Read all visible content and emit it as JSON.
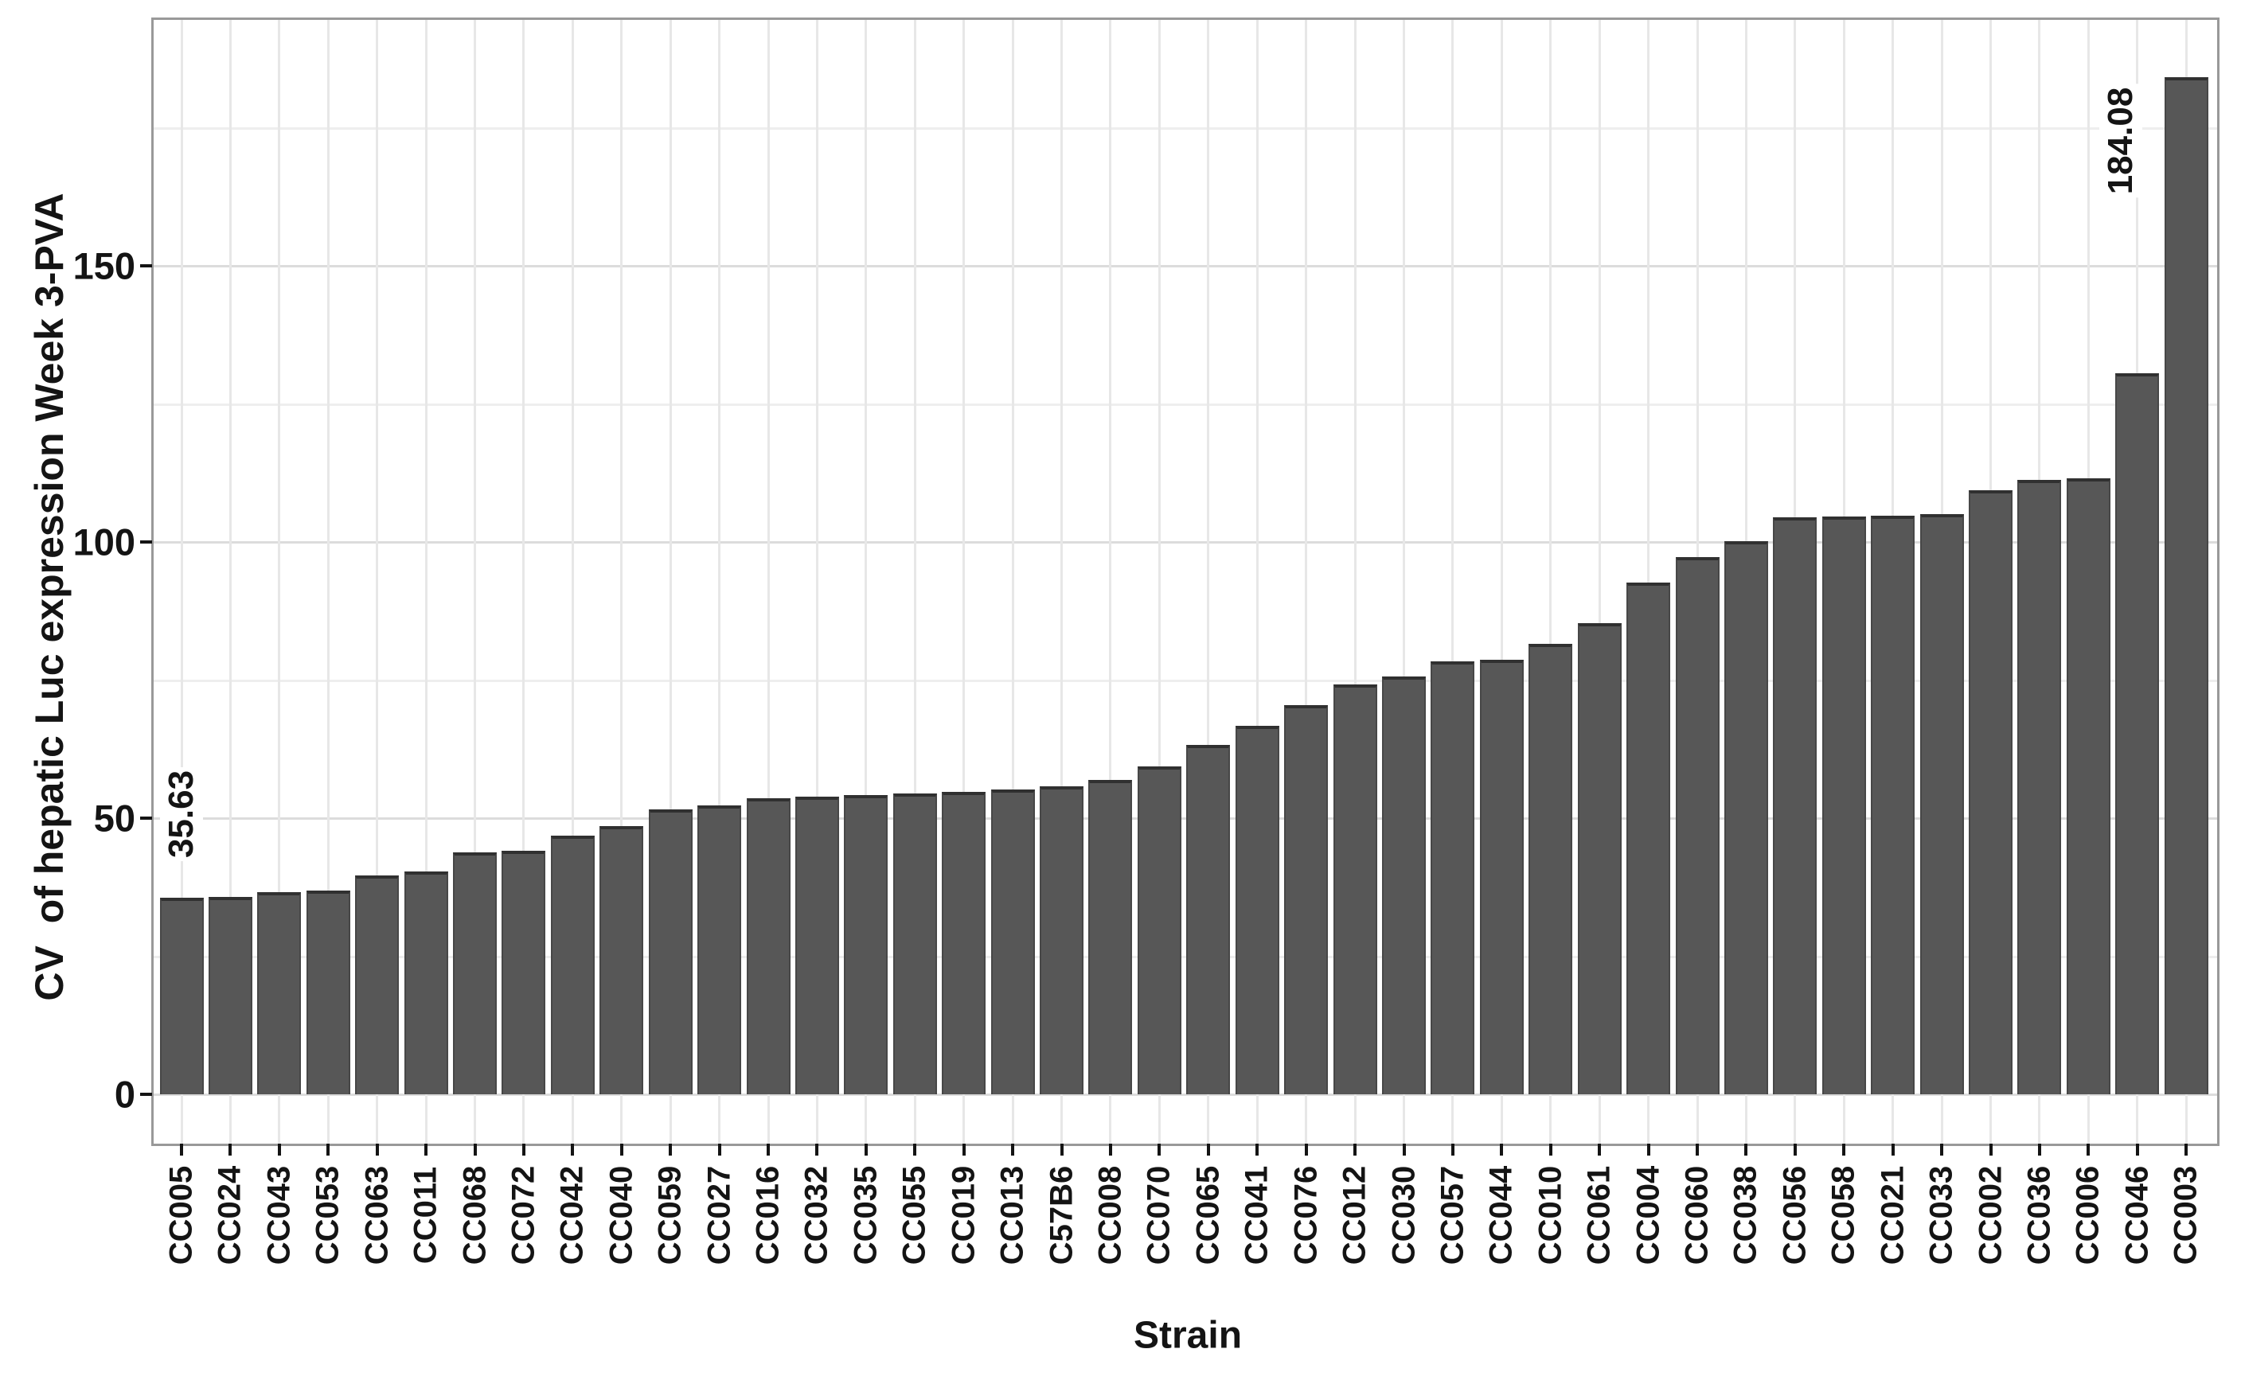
{
  "chart_data": {
    "type": "bar",
    "title": "",
    "xlabel": "Strain",
    "ylabel": "CV  of hepatic Luc expression Week 3-PVA",
    "categories": [
      "CC005",
      "CC024",
      "CC043",
      "CC053",
      "CC063",
      "CC011",
      "CC068",
      "CC072",
      "CC042",
      "CC040",
      "CC059",
      "CC027",
      "CC016",
      "CC032",
      "CC035",
      "CC055",
      "CC019",
      "CC013",
      "C57B6",
      "CC008",
      "CC070",
      "CC065",
      "CC041",
      "CC076",
      "CC012",
      "CC030",
      "CC057",
      "CC044",
      "CC010",
      "CC061",
      "CC004",
      "CC060",
      "CC038",
      "CC056",
      "CC058",
      "CC021",
      "CC033",
      "CC002",
      "CC036",
      "CC006",
      "CC046",
      "CC003"
    ],
    "values": [
      35.63,
      35.8,
      36.6,
      36.9,
      39.6,
      40.3,
      43.8,
      44.1,
      46.8,
      48.5,
      51.6,
      52.3,
      53.6,
      53.9,
      54.2,
      54.5,
      54.8,
      55.2,
      55.8,
      56.9,
      59.3,
      63.2,
      66.7,
      70.4,
      74.2,
      75.7,
      78.4,
      78.7,
      81.6,
      85.3,
      92.6,
      97.3,
      100.2,
      104.4,
      104.6,
      104.8,
      105.0,
      109.3,
      111.2,
      111.5,
      130.6,
      184.08
    ],
    "yticks": [
      "0",
      "50",
      "100",
      "150"
    ],
    "ytick_values": [
      0,
      50,
      100,
      150
    ],
    "minor_gridlines": [
      25,
      75,
      125,
      175
    ],
    "ylim": [
      -9,
      195
    ],
    "grid": "on",
    "legend_position": "none",
    "bar_color": "#575757",
    "bar_edge_color": "#303030",
    "gridline_color": "#dcdcdc",
    "annotations": [
      {
        "bar": "CC005",
        "text": "35.63"
      },
      {
        "bar": "CC003",
        "text": "184.08"
      }
    ]
  }
}
